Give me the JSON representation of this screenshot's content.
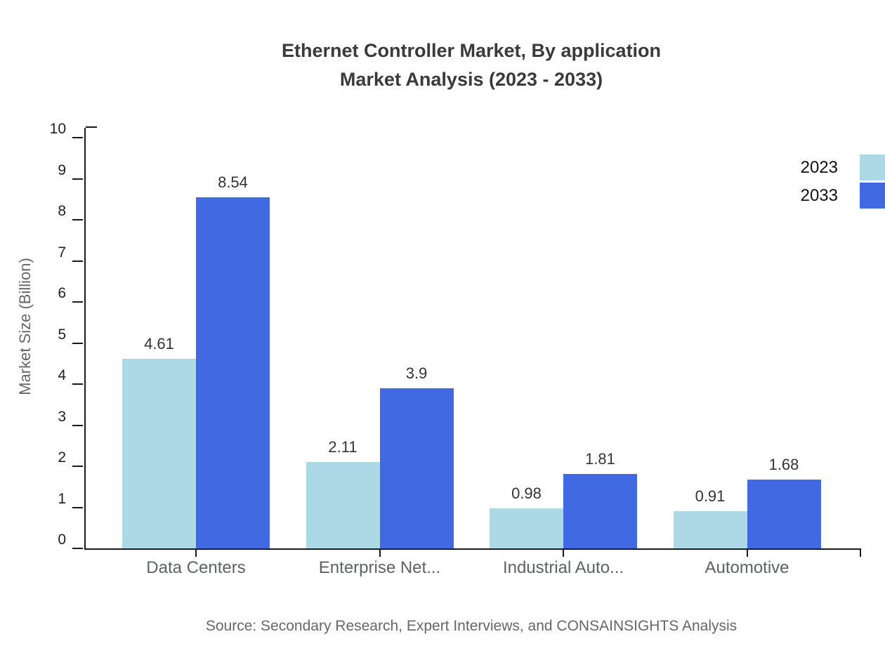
{
  "title": {
    "line1": "Ethernet Controller Market, By application",
    "line2": "Market Analysis (2023 - 2033)"
  },
  "source": "Source: Secondary Research, Expert Interviews, and CONSAINSIGHTS Analysis",
  "chart_data": {
    "type": "bar",
    "title": "Ethernet Controller Market, By application Market Analysis (2023 - 2033)",
    "categories": [
      "Data Centers",
      "Enterprise Net...",
      "Industrial Auto...",
      "Automotive"
    ],
    "series": [
      {
        "name": "2023",
        "color": "#ADD8E6",
        "values": [
          4.61,
          2.11,
          0.98,
          0.91
        ]
      },
      {
        "name": "2033",
        "color": "#4169E1",
        "values": [
          8.54,
          3.9,
          1.81,
          1.68
        ]
      }
    ],
    "xlabel": "",
    "ylabel": "Market Size (Billion)",
    "ylim": [
      0,
      10
    ],
    "yticks": [
      0,
      1,
      2,
      3,
      4,
      5,
      6,
      7,
      8,
      9,
      10
    ],
    "grid": false,
    "legend_position": "top-right",
    "axis_color": "#1a1a1a",
    "value_label_color": "#333333"
  }
}
